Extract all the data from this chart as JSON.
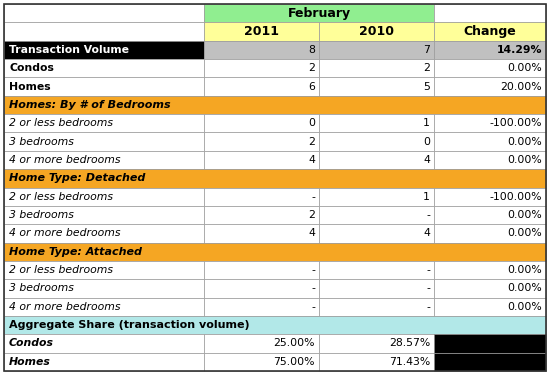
{
  "title": "February",
  "col_headers": [
    "2011",
    "2010",
    "Change"
  ],
  "rows": [
    {
      "label": "Transaction Volume",
      "vals": [
        "8",
        "7",
        "14.29%"
      ],
      "label_style": "bold_white",
      "row_bg": [
        "#c0c0c0",
        "#c0c0c0",
        "#c0c0c0"
      ],
      "change_bold": true
    },
    {
      "label": "Condos",
      "vals": [
        "2",
        "2",
        "0.00%"
      ],
      "label_style": "bold",
      "row_bg": [
        "#ffffff",
        "#ffffff",
        "#ffffff"
      ],
      "change_bold": false
    },
    {
      "label": "Homes",
      "vals": [
        "6",
        "5",
        "20.00%"
      ],
      "label_style": "bold",
      "row_bg": [
        "#ffffff",
        "#ffffff",
        "#ffffff"
      ],
      "change_bold": false
    },
    {
      "label": "Homes: By # of Bedrooms",
      "vals": [
        "",
        "",
        ""
      ],
      "label_style": "bold_italic_section",
      "row_bg": [
        "#f5a623",
        "#f5a623",
        "#f5a623"
      ],
      "change_bold": false
    },
    {
      "label": "2 or less bedrooms",
      "vals": [
        "0",
        "1",
        "-100.00%"
      ],
      "label_style": "italic",
      "row_bg": [
        "#ffffff",
        "#ffffff",
        "#ffffff"
      ],
      "change_bold": false
    },
    {
      "label": "3 bedrooms",
      "vals": [
        "2",
        "0",
        "0.00%"
      ],
      "label_style": "italic",
      "row_bg": [
        "#ffffff",
        "#ffffff",
        "#ffffff"
      ],
      "change_bold": false
    },
    {
      "label": "4 or more bedrooms",
      "vals": [
        "4",
        "4",
        "0.00%"
      ],
      "label_style": "italic",
      "row_bg": [
        "#ffffff",
        "#ffffff",
        "#ffffff"
      ],
      "change_bold": false
    },
    {
      "label": "Home Type: Detached",
      "vals": [
        "",
        "",
        ""
      ],
      "label_style": "bold_italic_section",
      "row_bg": [
        "#f5a623",
        "#f5a623",
        "#f5a623"
      ],
      "change_bold": false
    },
    {
      "label": "2 or less bedrooms",
      "vals": [
        "-",
        "1",
        "-100.00%"
      ],
      "label_style": "italic",
      "row_bg": [
        "#ffffff",
        "#ffffff",
        "#ffffff"
      ],
      "change_bold": false
    },
    {
      "label": "3 bedrooms",
      "vals": [
        "2",
        "-",
        "0.00%"
      ],
      "label_style": "italic",
      "row_bg": [
        "#ffffff",
        "#ffffff",
        "#ffffff"
      ],
      "change_bold": false
    },
    {
      "label": "4 or more bedrooms",
      "vals": [
        "4",
        "4",
        "0.00%"
      ],
      "label_style": "italic",
      "row_bg": [
        "#ffffff",
        "#ffffff",
        "#ffffff"
      ],
      "change_bold": false
    },
    {
      "label": "Home Type: Attached",
      "vals": [
        "",
        "",
        ""
      ],
      "label_style": "bold_italic_section",
      "row_bg": [
        "#f5a623",
        "#f5a623",
        "#f5a623"
      ],
      "change_bold": false
    },
    {
      "label": "2 or less bedrooms",
      "vals": [
        "-",
        "-",
        "0.00%"
      ],
      "label_style": "italic",
      "row_bg": [
        "#ffffff",
        "#ffffff",
        "#ffffff"
      ],
      "change_bold": false
    },
    {
      "label": "3 bedrooms",
      "vals": [
        "-",
        "-",
        "0.00%"
      ],
      "label_style": "italic",
      "row_bg": [
        "#ffffff",
        "#ffffff",
        "#ffffff"
      ],
      "change_bold": false
    },
    {
      "label": "4 or more bedrooms",
      "vals": [
        "-",
        "-",
        "0.00%"
      ],
      "label_style": "italic",
      "row_bg": [
        "#ffffff",
        "#ffffff",
        "#ffffff"
      ],
      "change_bold": false
    },
    {
      "label": "Aggregate Share (transaction volume)",
      "vals": [
        "",
        "",
        ""
      ],
      "label_style": "bold_section_cyan",
      "row_bg": [
        "#b2e8e8",
        "#b2e8e8",
        "#b2e8e8"
      ],
      "change_bold": false
    },
    {
      "label": "Condos",
      "vals": [
        "25.00%",
        "28.57%",
        ""
      ],
      "label_style": "bold_italic",
      "row_bg": [
        "#ffffff",
        "#ffffff",
        "#000000"
      ],
      "change_bold": false
    },
    {
      "label": "Homes",
      "vals": [
        "75.00%",
        "71.43%",
        ""
      ],
      "label_style": "bold_italic",
      "row_bg": [
        "#ffffff",
        "#ffffff",
        "#000000"
      ],
      "change_bold": false
    }
  ],
  "title_bg": "#90ee90",
  "header_bg": "#ffff99",
  "section_orange": "#f5a623",
  "aggregate_cyan": "#b2e8e8",
  "tv_bg": "#c0c0c0",
  "figw": 5.5,
  "figh": 3.75,
  "dpi": 100
}
